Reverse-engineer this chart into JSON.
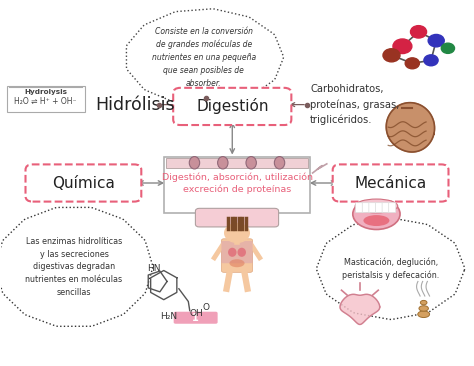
{
  "bg_color": "#ffffff",
  "pink": "#e8607a",
  "pink_light": "#f5c0cc",
  "arrow_color": "#888888",
  "dark_arrow": "#7a5c5c",
  "cloud_top_text": "Consiste en la conversión\nde grandes moléculas de\nnutrientes en una pequeña\nque sean posibles de\nabsorber.",
  "cloud_left_text": "Las enzimas hidrolíticas\ny las secreciones\ndigestivas degradan\nnutrientes en moléculas\nsencillas",
  "cloud_right_text": "Masticación, deglución,\nperistalsis y defecación.",
  "center_text": "Digestión, absorción, utilización\nexcreción de proteínas",
  "digestion_text": "Digestión",
  "quimica_text": "Química",
  "mecanica_text": "Mecánica",
  "hidrolisis_text": "Hidrólisis",
  "carbohidratos_text": "Carbohidratos,\nproteínas, grasas,\ntriglicéridos.",
  "hydrolysis_line1": "Hydrolysis",
  "hydrolysis_line2": "H₂O ⇌ H⁺ + OH⁻"
}
